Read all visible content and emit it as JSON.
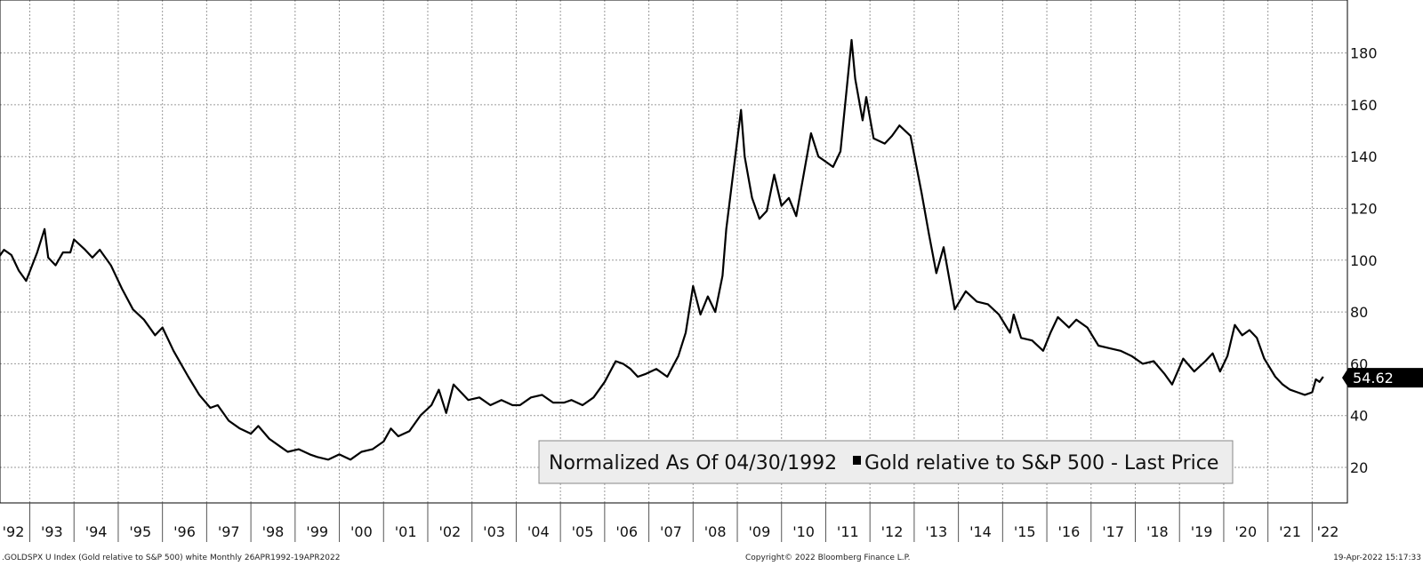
{
  "chart_data": {
    "type": "line",
    "title": "",
    "xlabel": "",
    "ylabel": "",
    "x_tick_labels": [
      "'92",
      "'93",
      "'94",
      "'95",
      "'96",
      "'97",
      "'98",
      "'99",
      "'00",
      "'01",
      "'02",
      "'03",
      "'04",
      "'05",
      "'06",
      "'07",
      "'08",
      "'09",
      "'10",
      "'11",
      "'12",
      "'13",
      "'14",
      "'15",
      "'16",
      "'17",
      "'18",
      "'19",
      "'20",
      "'21",
      "'22"
    ],
    "y_ticks": [
      20,
      40,
      60,
      80,
      100,
      120,
      140,
      160,
      180
    ],
    "xlim": [
      "1992-04",
      "2022-04"
    ],
    "ylim": [
      6,
      200
    ],
    "grid": true,
    "legend": {
      "placement": "bottom-right",
      "prefix": "Normalized As Of 04/30/1992",
      "entry": "Gold relative to S&P 500 - Last Price"
    },
    "last_price_label": "54.62",
    "series": [
      {
        "name": "Gold relative to S&P 500 - Last Price",
        "color": "#000000",
        "points": [
          [
            "1992-04",
            100
          ],
          [
            "1992-06",
            104
          ],
          [
            "1992-08",
            102
          ],
          [
            "1992-10",
            96
          ],
          [
            "1992-12",
            92
          ],
          [
            "1993-03",
            103
          ],
          [
            "1993-05",
            112
          ],
          [
            "1993-06",
            101
          ],
          [
            "1993-08",
            98
          ],
          [
            "1993-10",
            103
          ],
          [
            "1993-12",
            103
          ],
          [
            "1994-01",
            108
          ],
          [
            "1994-04",
            104
          ],
          [
            "1994-06",
            101
          ],
          [
            "1994-08",
            104
          ],
          [
            "1994-11",
            98
          ],
          [
            "1995-02",
            89
          ],
          [
            "1995-05",
            81
          ],
          [
            "1995-08",
            77
          ],
          [
            "1995-11",
            71
          ],
          [
            "1996-01",
            74
          ],
          [
            "1996-04",
            65
          ],
          [
            "1996-06",
            60
          ],
          [
            "1996-08",
            55
          ],
          [
            "1996-11",
            48
          ],
          [
            "1997-02",
            43
          ],
          [
            "1997-04",
            44
          ],
          [
            "1997-07",
            38
          ],
          [
            "1997-10",
            35
          ],
          [
            "1998-01",
            33
          ],
          [
            "1998-03",
            36
          ],
          [
            "1998-06",
            31
          ],
          [
            "1998-09",
            28
          ],
          [
            "1998-11",
            26
          ],
          [
            "1999-02",
            27
          ],
          [
            "1999-05",
            25
          ],
          [
            "1999-07",
            24
          ],
          [
            "1999-10",
            23
          ],
          [
            "2000-01",
            25
          ],
          [
            "2000-04",
            23
          ],
          [
            "2000-07",
            26
          ],
          [
            "2000-10",
            27
          ],
          [
            "2001-01",
            30
          ],
          [
            "2001-03",
            35
          ],
          [
            "2001-05",
            32
          ],
          [
            "2001-08",
            34
          ],
          [
            "2001-11",
            40
          ],
          [
            "2002-02",
            44
          ],
          [
            "2002-04",
            50
          ],
          [
            "2002-06",
            41
          ],
          [
            "2002-08",
            52
          ],
          [
            "2002-10",
            49
          ],
          [
            "2002-12",
            46
          ],
          [
            "2003-03",
            47
          ],
          [
            "2003-06",
            44
          ],
          [
            "2003-09",
            46
          ],
          [
            "2003-12",
            44
          ],
          [
            "2004-02",
            44
          ],
          [
            "2004-05",
            47
          ],
          [
            "2004-08",
            48
          ],
          [
            "2004-11",
            45
          ],
          [
            "2005-02",
            45
          ],
          [
            "2005-04",
            46
          ],
          [
            "2005-07",
            44
          ],
          [
            "2005-10",
            47
          ],
          [
            "2006-01",
            53
          ],
          [
            "2006-04",
            61
          ],
          [
            "2006-06",
            60
          ],
          [
            "2006-08",
            58
          ],
          [
            "2006-10",
            55
          ],
          [
            "2006-12",
            56
          ],
          [
            "2007-03",
            58
          ],
          [
            "2007-06",
            55
          ],
          [
            "2007-09",
            63
          ],
          [
            "2007-11",
            72
          ],
          [
            "2008-01",
            90
          ],
          [
            "2008-03",
            79
          ],
          [
            "2008-05",
            86
          ],
          [
            "2008-07",
            80
          ],
          [
            "2008-09",
            94
          ],
          [
            "2008-10",
            112
          ],
          [
            "2008-12",
            135
          ],
          [
            "2009-02",
            158
          ],
          [
            "2009-03",
            140
          ],
          [
            "2009-05",
            124
          ],
          [
            "2009-07",
            116
          ],
          [
            "2009-09",
            119
          ],
          [
            "2009-11",
            133
          ],
          [
            "2010-01",
            121
          ],
          [
            "2010-03",
            124
          ],
          [
            "2010-05",
            117
          ],
          [
            "2010-07",
            133
          ],
          [
            "2010-09",
            149
          ],
          [
            "2010-11",
            140
          ],
          [
            "2011-01",
            138
          ],
          [
            "2011-03",
            136
          ],
          [
            "2011-05",
            142
          ],
          [
            "2011-08",
            185
          ],
          [
            "2011-09",
            170
          ],
          [
            "2011-11",
            154
          ],
          [
            "2011-12",
            163
          ],
          [
            "2012-02",
            147
          ],
          [
            "2012-05",
            145
          ],
          [
            "2012-07",
            148
          ],
          [
            "2012-09",
            152
          ],
          [
            "2012-12",
            148
          ],
          [
            "2013-03",
            126
          ],
          [
            "2013-05",
            110
          ],
          [
            "2013-07",
            95
          ],
          [
            "2013-09",
            105
          ],
          [
            "2013-12",
            81
          ],
          [
            "2014-03",
            88
          ],
          [
            "2014-06",
            84
          ],
          [
            "2014-09",
            83
          ],
          [
            "2014-12",
            79
          ],
          [
            "2015-03",
            72
          ],
          [
            "2015-04",
            79
          ],
          [
            "2015-06",
            70
          ],
          [
            "2015-09",
            69
          ],
          [
            "2015-12",
            65
          ],
          [
            "2016-02",
            72
          ],
          [
            "2016-04",
            78
          ],
          [
            "2016-07",
            74
          ],
          [
            "2016-09",
            77
          ],
          [
            "2016-12",
            74
          ],
          [
            "2017-03",
            67
          ],
          [
            "2017-06",
            66
          ],
          [
            "2017-09",
            65
          ],
          [
            "2017-12",
            63
          ],
          [
            "2018-03",
            60
          ],
          [
            "2018-06",
            61
          ],
          [
            "2018-09",
            56
          ],
          [
            "2018-11",
            52
          ],
          [
            "2019-02",
            62
          ],
          [
            "2019-05",
            57
          ],
          [
            "2019-08",
            61
          ],
          [
            "2019-10",
            64
          ],
          [
            "2019-12",
            57
          ],
          [
            "2020-02",
            63
          ],
          [
            "2020-04",
            75
          ],
          [
            "2020-06",
            71
          ],
          [
            "2020-08",
            73
          ],
          [
            "2020-10",
            70
          ],
          [
            "2020-12",
            62
          ],
          [
            "2021-03",
            55
          ],
          [
            "2021-05",
            52
          ],
          [
            "2021-07",
            50
          ],
          [
            "2021-09",
            49
          ],
          [
            "2021-11",
            48
          ],
          [
            "2022-01",
            49
          ],
          [
            "2022-02",
            54
          ],
          [
            "2022-03",
            53
          ],
          [
            "2022-04",
            55
          ]
        ]
      }
    ]
  },
  "footer": {
    "left": ".GOLDSPX U Index (Gold relative to S&P 500) white  Monthly 26APR1992-19APR2022",
    "center": "Copyright© 2022 Bloomberg Finance L.P.",
    "right": "19-Apr-2022 15:17:33"
  }
}
